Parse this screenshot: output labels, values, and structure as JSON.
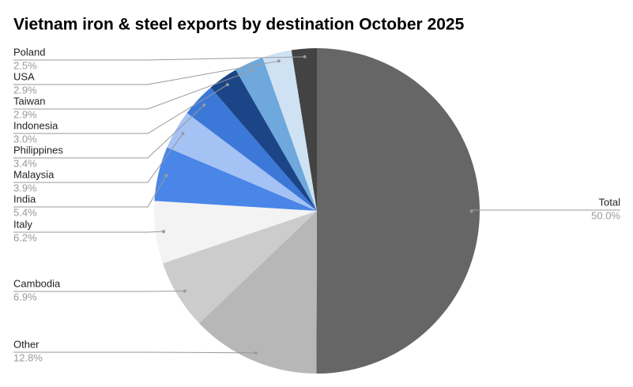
{
  "chart_data": {
    "type": "pie",
    "title": "Vietnam iron & steel exports by destination October 2025",
    "categories": [
      "Total",
      "Other",
      "Cambodia",
      "Italy",
      "India",
      "Malaysia",
      "Philippines",
      "Indonesia",
      "Taiwan",
      "USA",
      "Poland"
    ],
    "values": [
      50.0,
      12.8,
      6.9,
      6.2,
      5.4,
      3.9,
      3.4,
      3.0,
      2.9,
      2.9,
      2.5
    ],
    "value_labels": [
      "50.0%",
      "12.8%",
      "6.9%",
      "6.2%",
      "5.4%",
      "3.9%",
      "3.4%",
      "3.0%",
      "2.9%",
      "2.9%",
      "2.5%"
    ],
    "colors": [
      "#666666",
      "#b7b7b7",
      "#cccccc",
      "#f3f3f3",
      "#4a86e8",
      "#a4c2f4",
      "#3c78d8",
      "#1c4587",
      "#6fa8dc",
      "#cfe2f3",
      "#434343"
    ]
  }
}
